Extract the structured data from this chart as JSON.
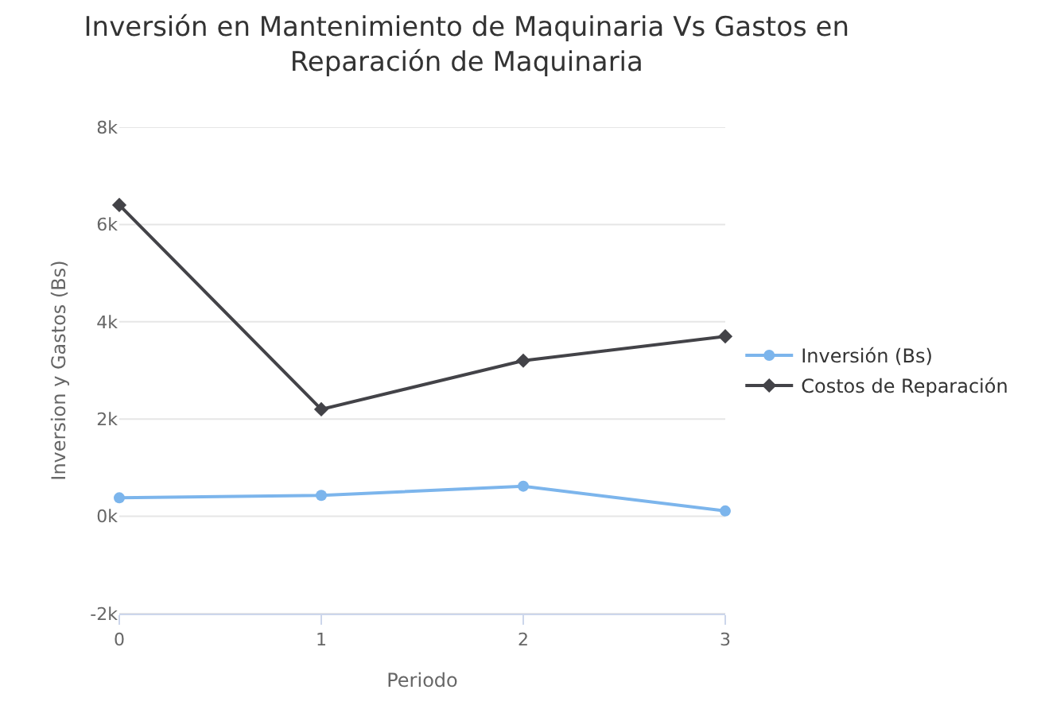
{
  "chart_data": {
    "type": "line",
    "title": "Inversión en Mantenimiento de Maquinaria Vs Gastos en Reparación de Maquinaria",
    "xlabel": "Periodo",
    "ylabel": "Inversion y Gastos (Bs)",
    "x": [
      0,
      1,
      2,
      3
    ],
    "series": [
      {
        "name": "Inversión (Bs)",
        "color": "#7cb5ec",
        "values": [
          380,
          430,
          620,
          110
        ],
        "marker": "circle"
      },
      {
        "name": "Costos de Reparación",
        "color": "#434348",
        "values": [
          6400,
          2200,
          3200,
          3700
        ],
        "marker": "diamond"
      }
    ],
    "xlim": [
      0,
      3
    ],
    "xticks": [
      0,
      1,
      2,
      3
    ],
    "ylim": [
      -2000,
      8000
    ],
    "yticks": [
      {
        "value": -2000,
        "label": "-2k"
      },
      {
        "value": 0,
        "label": "0k"
      },
      {
        "value": 2000,
        "label": "2k"
      },
      {
        "value": 4000,
        "label": "4k"
      },
      {
        "value": 6000,
        "label": "6k"
      },
      {
        "value": 8000,
        "label": "8k"
      }
    ],
    "grid": "y",
    "legend": "right",
    "line_style": "solid"
  }
}
